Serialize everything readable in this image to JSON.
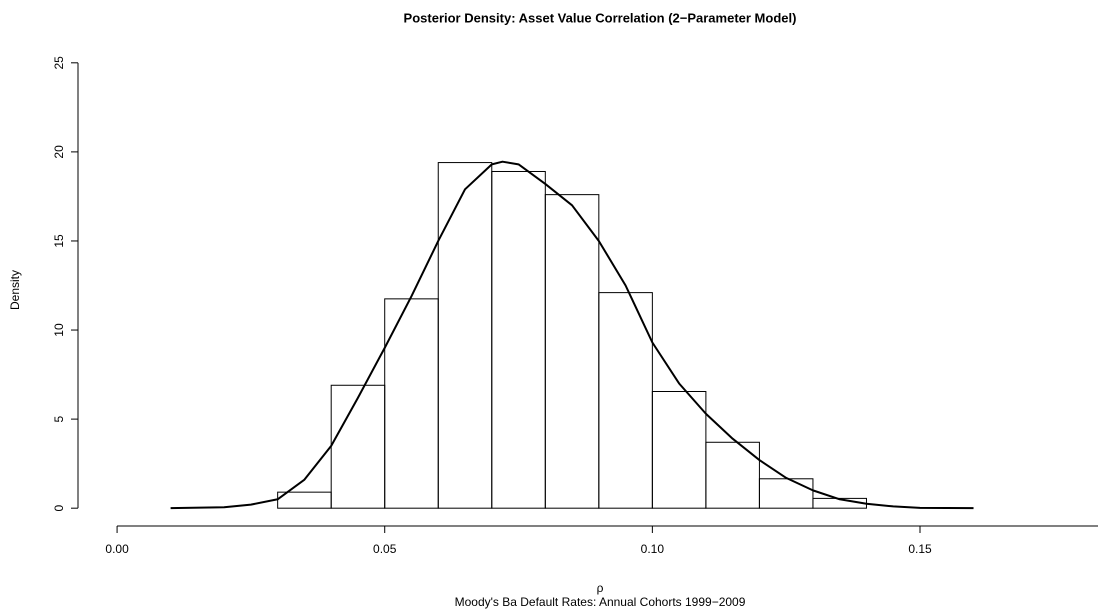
{
  "chart_data": {
    "type": "histogram",
    "title": "Posterior Density: Asset Value Correlation (2−Parameter Model)",
    "x_label": "ρ",
    "subtitle": "Moody's Ba Default Rates: Annual Cohorts 1999−2009",
    "y_label": "Density",
    "bins": [
      0.03,
      0.04,
      0.05,
      0.06,
      0.07,
      0.08,
      0.09,
      0.1,
      0.11,
      0.12,
      0.13,
      0.14
    ],
    "values": [
      0.9,
      6.9,
      11.75,
      19.4,
      18.9,
      17.6,
      12.1,
      6.55,
      3.7,
      1.65,
      0.55
    ],
    "density": {
      "x": [
        0.01,
        0.02,
        0.025,
        0.03,
        0.035,
        0.04,
        0.045,
        0.05,
        0.055,
        0.06,
        0.065,
        0.07,
        0.072,
        0.075,
        0.08,
        0.085,
        0.09,
        0.095,
        0.1,
        0.105,
        0.11,
        0.115,
        0.12,
        0.125,
        0.13,
        0.135,
        0.14,
        0.145,
        0.15,
        0.16
      ],
      "y": [
        0,
        0.05,
        0.2,
        0.5,
        1.6,
        3.5,
        6.2,
        9.0,
        11.9,
        15.0,
        17.9,
        19.3,
        19.45,
        19.3,
        18.2,
        17.0,
        15.0,
        12.5,
        9.3,
        7.0,
        5.3,
        3.9,
        2.7,
        1.7,
        1.0,
        0.5,
        0.25,
        0.1,
        0.02,
        0
      ]
    },
    "xlim": [
      -0.0073,
      0.184
    ],
    "ylim": [
      -1,
      26
    ],
    "xticks": [
      {
        "value": 0,
        "label": "0.00"
      },
      0.05,
      {
        "value": 0.1,
        "label": "0.10"
      },
      0.15
    ],
    "yticks": [
      0,
      5,
      10,
      15,
      20,
      25
    ]
  }
}
